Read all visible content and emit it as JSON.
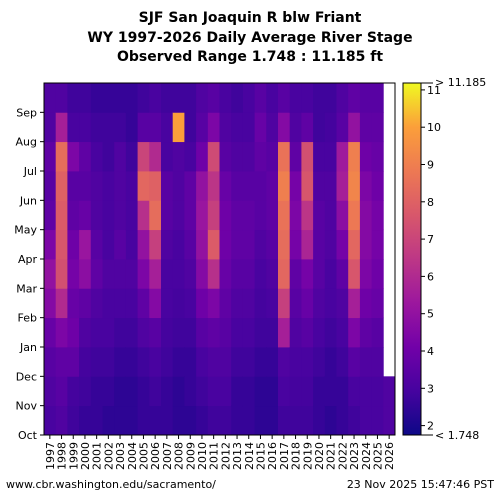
{
  "header": {
    "title_line1": "SJF San Joaquin R blw Friant",
    "title_line2": "WY 1997-2026 Daily Average River Stage",
    "title_line3": "Observed Range 1.748 : 11.185 ft"
  },
  "footer": {
    "source_url": "www.cbr.washington.edu/sacramento/",
    "timestamp": "23 Nov 2025 15:47:46 PST"
  },
  "chart_data": {
    "type": "heatmap",
    "x_categories": [
      "1997",
      "1998",
      "1999",
      "2000",
      "2001",
      "2002",
      "2003",
      "2004",
      "2005",
      "2006",
      "2007",
      "2008",
      "2009",
      "2010",
      "2011",
      "2012",
      "2013",
      "2014",
      "2015",
      "2016",
      "2017",
      "2018",
      "2019",
      "2020",
      "2021",
      "2022",
      "2023",
      "2024",
      "2025",
      "2026"
    ],
    "y_categories": [
      "Oct",
      "Nov",
      "Dec",
      "Jan",
      "Feb",
      "Mar",
      "Apr",
      "May",
      "Jun",
      "Jul",
      "Aug",
      "Sep"
    ],
    "values_monthly_estimate": [
      [
        3.0,
        3.2,
        3.4,
        3.8,
        4.6,
        5.0,
        4.4,
        3.6,
        3.4,
        3.6,
        3.2,
        3.2
      ],
      [
        3.2,
        3.4,
        3.6,
        4.4,
        6.0,
        7.4,
        7.6,
        7.8,
        8.0,
        8.4,
        5.6,
        3.2
      ],
      [
        2.8,
        2.9,
        3.6,
        4.0,
        3.8,
        4.2,
        4.0,
        3.6,
        3.4,
        4.4,
        3.0,
        2.8
      ],
      [
        2.6,
        2.8,
        2.9,
        3.2,
        3.6,
        4.8,
        5.2,
        3.8,
        3.4,
        3.6,
        3.0,
        2.8
      ],
      [
        2.6,
        2.6,
        2.8,
        3.0,
        3.2,
        3.6,
        3.4,
        3.2,
        3.2,
        3.0,
        2.8,
        2.6
      ],
      [
        2.4,
        2.6,
        2.8,
        3.0,
        3.0,
        3.2,
        3.0,
        3.0,
        3.0,
        2.8,
        2.8,
        2.6
      ],
      [
        2.4,
        2.4,
        2.6,
        2.8,
        3.0,
        3.2,
        3.4,
        3.2,
        3.2,
        3.2,
        2.8,
        2.6
      ],
      [
        2.4,
        2.4,
        2.6,
        2.8,
        3.0,
        3.2,
        3.0,
        3.0,
        3.0,
        2.8,
        2.6,
        2.6
      ],
      [
        2.6,
        2.6,
        2.8,
        3.2,
        3.6,
        4.4,
        5.0,
        6.2,
        8.2,
        7.0,
        3.4,
        2.8
      ],
      [
        2.6,
        2.8,
        3.0,
        3.4,
        4.6,
        5.6,
        6.8,
        8.4,
        8.0,
        6.0,
        3.4,
        3.0
      ],
      [
        2.6,
        2.6,
        2.8,
        2.9,
        3.0,
        3.0,
        3.2,
        3.4,
        3.4,
        3.0,
        3.0,
        2.8
      ],
      [
        2.4,
        2.4,
        2.6,
        2.8,
        2.9,
        3.0,
        3.0,
        3.2,
        3.2,
        3.2,
        10.0,
        2.8
      ],
      [
        2.4,
        2.6,
        2.6,
        2.8,
        3.0,
        3.2,
        3.4,
        3.6,
        3.6,
        3.0,
        2.8,
        2.8
      ],
      [
        2.6,
        2.8,
        3.0,
        3.4,
        4.0,
        4.6,
        5.0,
        5.2,
        5.0,
        4.0,
        3.4,
        3.2
      ],
      [
        2.8,
        3.0,
        3.2,
        3.6,
        4.4,
        6.2,
        7.8,
        6.8,
        6.4,
        7.2,
        4.4,
        3.4
      ],
      [
        2.8,
        3.0,
        3.2,
        3.4,
        3.6,
        3.8,
        4.0,
        4.0,
        3.8,
        3.4,
        3.2,
        3.0
      ],
      [
        2.6,
        2.6,
        2.8,
        3.0,
        3.2,
        3.4,
        3.6,
        3.6,
        3.4,
        3.2,
        3.0,
        2.8
      ],
      [
        2.6,
        2.6,
        2.8,
        3.0,
        3.2,
        3.4,
        3.6,
        3.6,
        3.4,
        3.2,
        3.0,
        3.0
      ],
      [
        2.4,
        2.4,
        2.6,
        2.8,
        2.9,
        3.0,
        3.2,
        3.4,
        3.4,
        3.6,
        3.8,
        3.4
      ],
      [
        2.4,
        2.4,
        2.6,
        2.8,
        3.0,
        3.2,
        3.4,
        3.6,
        3.6,
        3.4,
        3.2,
        3.0
      ],
      [
        2.8,
        3.0,
        3.2,
        5.6,
        6.8,
        8.2,
        8.4,
        8.6,
        9.0,
        8.6,
        4.6,
        3.4
      ],
      [
        2.8,
        2.9,
        3.0,
        3.2,
        3.4,
        3.6,
        4.2,
        4.4,
        4.2,
        3.6,
        3.2,
        3.0
      ],
      [
        2.8,
        2.9,
        3.0,
        3.4,
        3.8,
        4.2,
        5.8,
        6.4,
        7.6,
        7.4,
        3.6,
        3.0
      ],
      [
        2.6,
        2.6,
        2.8,
        3.0,
        3.2,
        3.4,
        3.4,
        3.4,
        3.2,
        3.0,
        2.8,
        2.8
      ],
      [
        2.4,
        2.6,
        2.6,
        2.8,
        3.0,
        3.0,
        3.2,
        3.2,
        3.2,
        3.0,
        2.9,
        2.8
      ],
      [
        2.6,
        2.6,
        2.8,
        3.0,
        3.2,
        3.6,
        4.2,
        4.8,
        5.6,
        5.4,
        3.4,
        3.2
      ],
      [
        2.8,
        3.0,
        3.4,
        4.4,
        5.6,
        7.6,
        8.2,
        8.8,
        9.2,
        9.0,
        5.0,
        3.6
      ],
      [
        3.0,
        3.0,
        3.2,
        3.6,
        4.0,
        4.4,
        4.6,
        4.6,
        4.4,
        4.0,
        3.6,
        3.4
      ],
      [
        3.0,
        3.0,
        3.2,
        3.4,
        3.8,
        4.0,
        4.2,
        4.2,
        4.0,
        3.8,
        3.6,
        3.4
      ],
      [
        3.2,
        3.2,
        null,
        null,
        null,
        null,
        null,
        null,
        null,
        null,
        null,
        null
      ]
    ],
    "values_note": "",
    "colorbar": {
      "min": 1.748,
      "max": 11.185,
      "ticks": [
        "2",
        "3",
        "4",
        "5",
        "6",
        "7",
        "8",
        "9",
        "10",
        "11"
      ],
      "tick_values": [
        2,
        3,
        4,
        5,
        6,
        7,
        8,
        9,
        10,
        11
      ],
      "max_label": "> 11.185",
      "min_label": "< 1.748",
      "colormap": "plasma"
    },
    "xlabel": "",
    "ylabel": "",
    "missing_color": "#ffffff"
  }
}
